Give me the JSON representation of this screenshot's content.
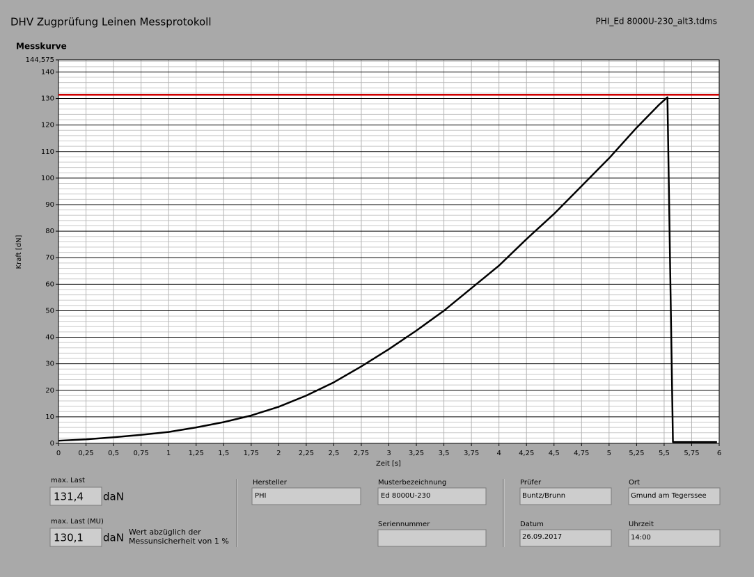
{
  "header": {
    "title": "DHV Zugprüfung Leinen Messprotokoll",
    "file": "PHI_Ed 8000U-230_alt3.tdms"
  },
  "chart_data": {
    "type": "line",
    "title": "Messkurve",
    "x_label": "Zeit [s]",
    "y_label": "Kraft [dN]",
    "x": [
      0,
      0.25,
      0.5,
      0.75,
      1,
      1.25,
      1.5,
      1.75,
      2,
      2.25,
      2.5,
      2.75,
      3,
      3.25,
      3.5,
      3.75,
      4,
      4.25,
      4.5,
      4.75,
      5,
      5.25,
      5.45,
      5.53,
      5.58,
      5.6,
      5.98
    ],
    "series": [
      {
        "color": "#000000",
        "values": [
          1,
          1.5,
          2.3,
          3.2,
          4.3,
          6,
          8,
          10.5,
          13.8,
          18,
          23,
          29,
          35.5,
          42.5,
          50,
          58.5,
          67,
          77,
          86.5,
          97,
          107.5,
          119,
          127.5,
          130.5,
          0.5,
          0.5,
          0.5
        ]
      }
    ],
    "threshold": {
      "value": 131.4,
      "color": "#d00000"
    },
    "xlim": [
      0,
      6
    ],
    "ylim": [
      0,
      144.575
    ],
    "xticks": [
      0,
      {
        "value": 0.25,
        "label": "0,25"
      },
      {
        "value": 0.5,
        "label": "0,5"
      },
      {
        "value": 0.75,
        "label": "0,75"
      },
      1,
      {
        "value": 1.25,
        "label": "1,25"
      },
      {
        "value": 1.5,
        "label": "1,5"
      },
      {
        "value": 1.75,
        "label": "1,75"
      },
      2,
      {
        "value": 2.25,
        "label": "2,25"
      },
      {
        "value": 2.5,
        "label": "2,5"
      },
      {
        "value": 2.75,
        "label": "2,75"
      },
      3,
      {
        "value": 3.25,
        "label": "3,25"
      },
      {
        "value": 3.5,
        "label": "3,5"
      },
      {
        "value": 3.75,
        "label": "3,75"
      },
      4,
      {
        "value": 4.25,
        "label": "4,25"
      },
      {
        "value": 4.5,
        "label": "4,5"
      },
      {
        "value": 4.75,
        "label": "4,75"
      },
      5,
      {
        "value": 5.25,
        "label": "5,25"
      },
      {
        "value": 5.5,
        "label": "5,5"
      },
      {
        "value": 5.75,
        "label": "5,75"
      },
      6
    ],
    "yticks": [
      0,
      10,
      20,
      30,
      40,
      50,
      60,
      70,
      80,
      90,
      100,
      110,
      120,
      130,
      140,
      {
        "value": 144.575,
        "label": "144,575"
      }
    ],
    "yminor_ticks": [
      2,
      4,
      6,
      8,
      12,
      14,
      16,
      18,
      22,
      24,
      26,
      28,
      32,
      34,
      36,
      38,
      42,
      44,
      46,
      48,
      52,
      54,
      56,
      58,
      62,
      64,
      66,
      68,
      72,
      74,
      76,
      78,
      82,
      84,
      86,
      88,
      92,
      94,
      96,
      98,
      102,
      104,
      106,
      108,
      112,
      114,
      116,
      118,
      122,
      124,
      126,
      128,
      132,
      134,
      136,
      138,
      142,
      144
    ],
    "grid": true
  },
  "fields": {
    "max_last": {
      "label": "max. Last",
      "value": "131,4",
      "unit": "daN"
    },
    "max_last_mu": {
      "label": "max. Last (MU)",
      "value": "130,1",
      "unit": "daN",
      "note": [
        "Wert abzüglich der",
        "Messunsicherheit von 1 %"
      ]
    },
    "hersteller": {
      "label": "Hersteller",
      "value": "PHI"
    },
    "musterbezeichnung": {
      "label": "Musterbezeichnung",
      "value": "Ed 8000U-230"
    },
    "seriennummer": {
      "label": "Seriennummer"
    },
    "pruefer": {
      "label": "Prüfer",
      "value": "Buntz/Brunn"
    },
    "ort": {
      "label": "Ort",
      "value": "Gmund am Tegerssee"
    },
    "datum": {
      "label": "Datum",
      "value": "26.09.2017"
    },
    "uhrzeit": {
      "label": "Uhrzeit",
      "value": "14:00"
    }
  }
}
